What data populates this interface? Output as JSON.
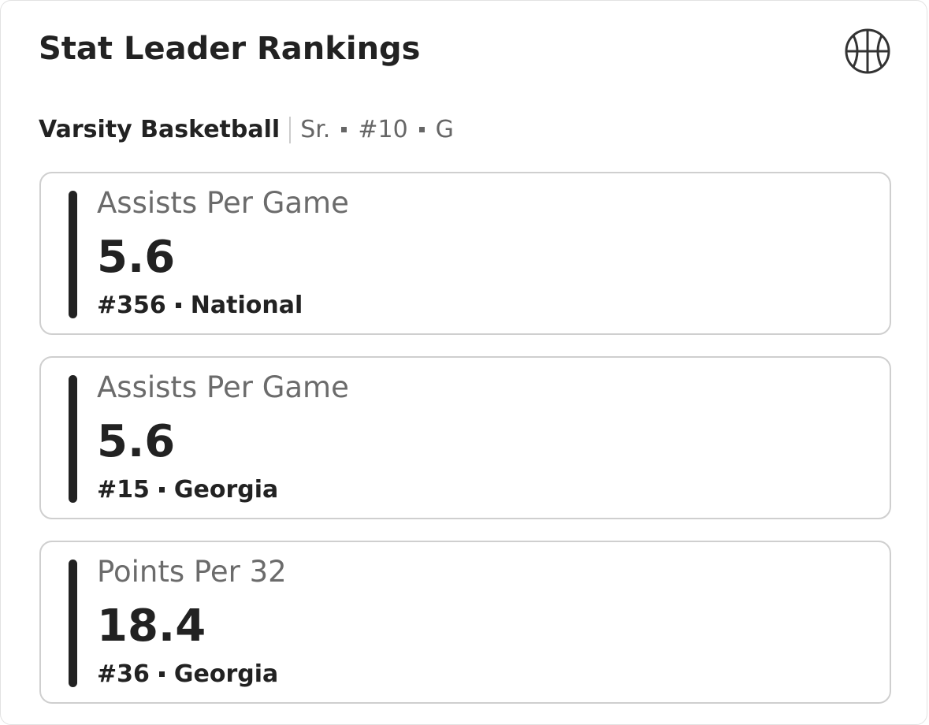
{
  "header": {
    "title": "Stat Leader Rankings"
  },
  "subtitle": {
    "team": "Varsity Basketball",
    "details": [
      "Sr.",
      "#10",
      "G"
    ]
  },
  "cards": [
    {
      "label": "Assists Per Game",
      "value": "5.6",
      "rank": "#356",
      "scope": "National"
    },
    {
      "label": "Assists Per Game",
      "value": "5.6",
      "rank": "#15",
      "scope": "Georgia"
    },
    {
      "label": "Points Per 32",
      "value": "18.4",
      "rank": "#36",
      "scope": "Georgia"
    }
  ]
}
